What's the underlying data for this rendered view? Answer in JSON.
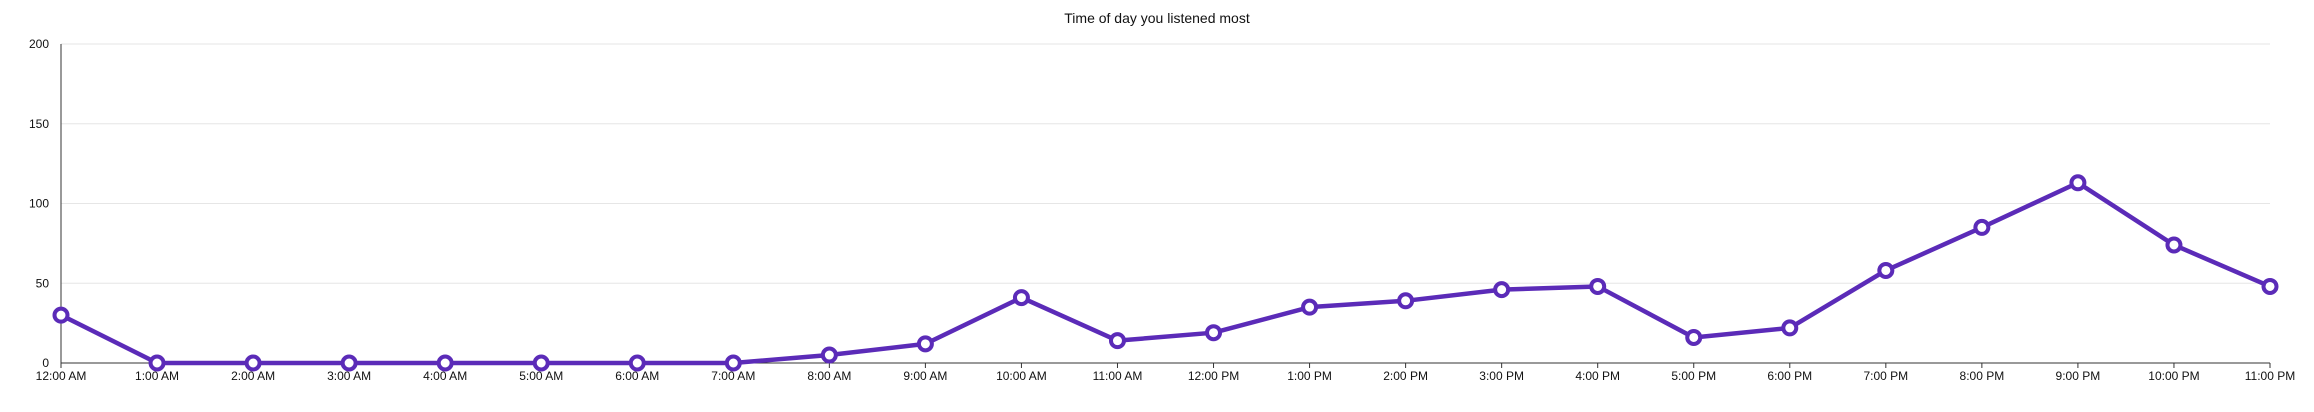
{
  "chart_data": {
    "type": "line",
    "title": "Time of day you listened most",
    "xlabel": "",
    "ylabel": "",
    "categories": [
      "12:00 AM",
      "1:00 AM",
      "2:00 AM",
      "3:00 AM",
      "4:00 AM",
      "5:00 AM",
      "6:00 AM",
      "7:00 AM",
      "8:00 AM",
      "9:00 AM",
      "10:00 AM",
      "11:00 AM",
      "12:00 PM",
      "1:00 PM",
      "2:00 PM",
      "3:00 PM",
      "4:00 PM",
      "5:00 PM",
      "6:00 PM",
      "7:00 PM",
      "8:00 PM",
      "9:00 PM",
      "10:00 PM",
      "11:00 PM"
    ],
    "series": [
      {
        "values": [
          30,
          0,
          0,
          0,
          0,
          0,
          0,
          0,
          5,
          12,
          41,
          14,
          19,
          35,
          39,
          46,
          48,
          16,
          22,
          58,
          85,
          113,
          74,
          48
        ]
      }
    ],
    "ylim": [
      0,
      200
    ],
    "yticks": [
      0,
      50,
      100,
      150,
      200
    ],
    "grid": true,
    "legend": "none",
    "colors": {
      "line": "#5b2bb8",
      "marker_fill": "#ffffff",
      "grid": "#e6e6e6",
      "axis": "#333333"
    }
  }
}
